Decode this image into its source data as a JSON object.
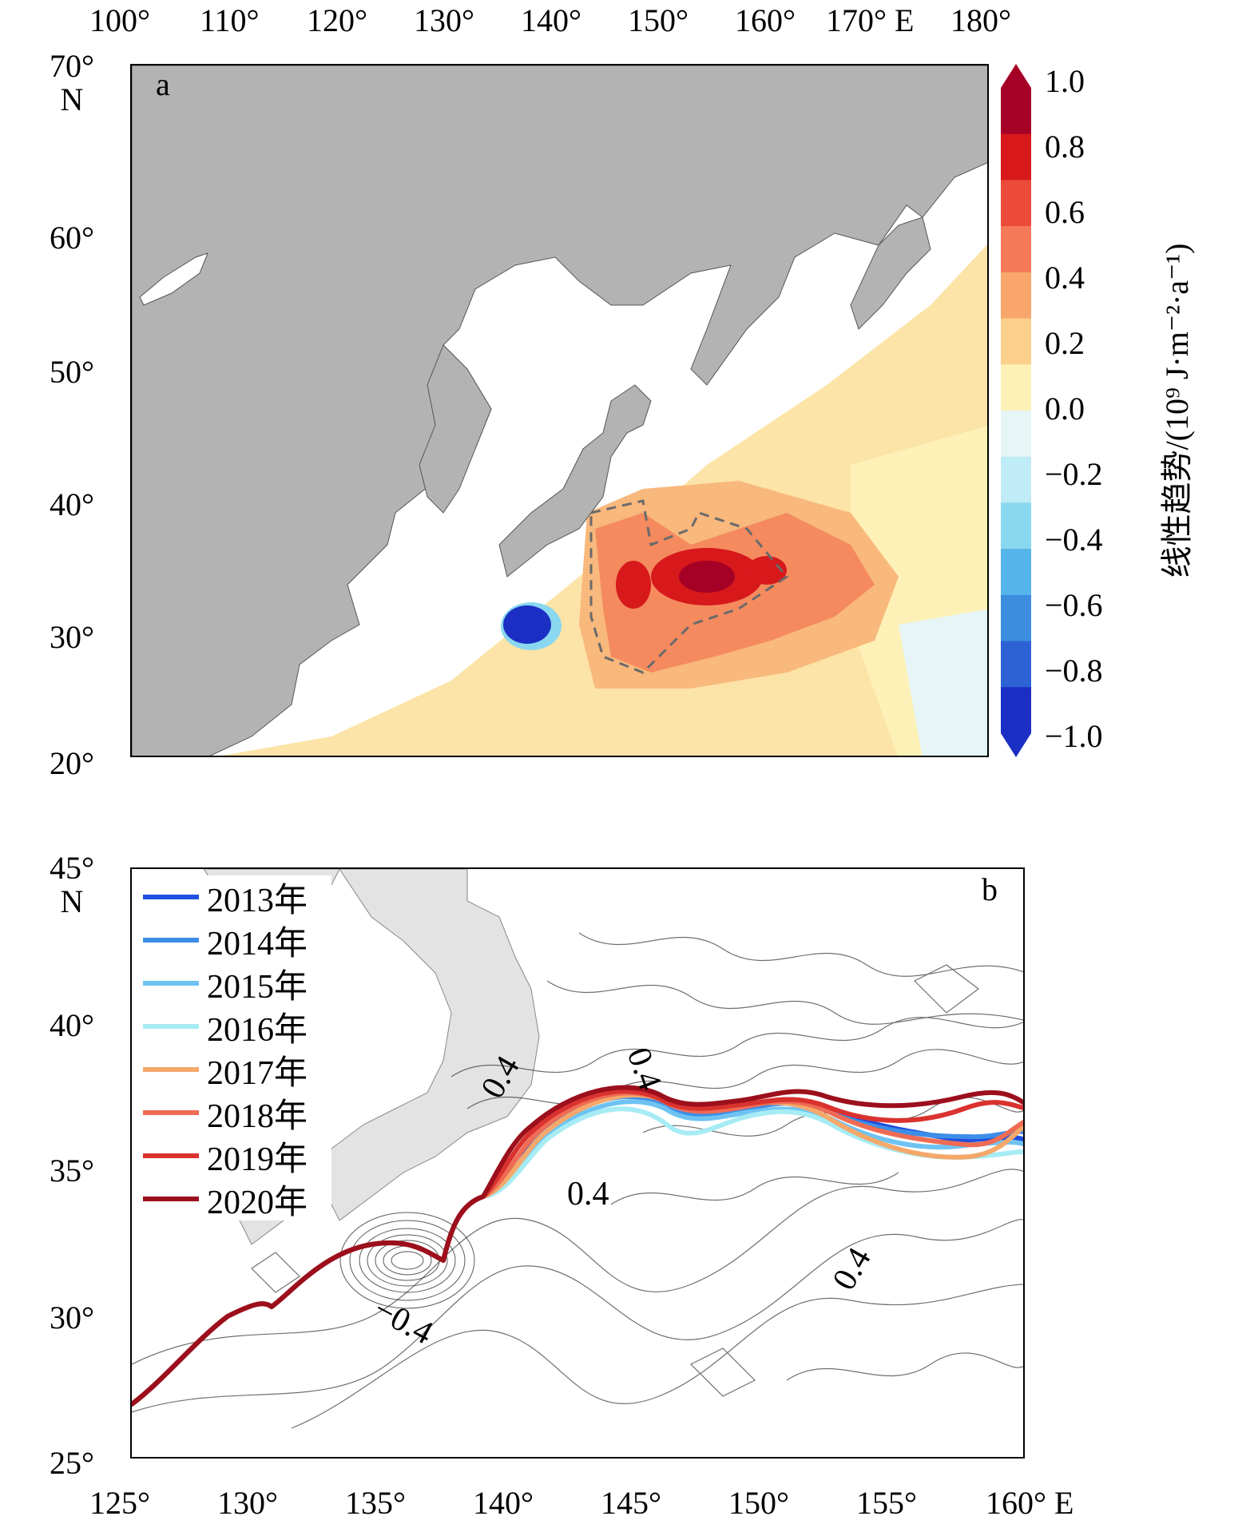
{
  "panel_a": {
    "label": "a",
    "top_ticks": [
      "100°",
      "110°",
      "120°",
      "130°",
      "140°",
      "150°",
      "160°",
      "170° E",
      "180°"
    ],
    "left_ticks": [
      "70°\nN",
      "60°",
      "50°",
      "40°",
      "30°",
      "20°"
    ],
    "colorbar": {
      "ticks": [
        "1.0",
        "0.8",
        "0.6",
        "0.4",
        "0.2",
        "0.0",
        "−0.2",
        "−0.4",
        "−0.6",
        "−0.8",
        "−1.0"
      ],
      "title": "线性趋势/(10⁹ J·m⁻²·a⁻¹)",
      "colors": [
        "#a50026",
        "#d7191c",
        "#ec4a3b",
        "#f57a5a",
        "#f9a66c",
        "#fcd08c",
        "#fef1b7",
        "#e6f6f6",
        "#bfecf6",
        "#8ad7f0",
        "#55b5ea",
        "#3c8de0",
        "#2c62d4",
        "#1b2fc4"
      ]
    },
    "colors": {
      "land": "#b3b3b3",
      "sea_ice_free": "#ffffff"
    }
  },
  "panel_b": {
    "label": "b",
    "bottom_ticks": [
      "125°",
      "130°",
      "135°",
      "140°",
      "145°",
      "150°",
      "155°",
      "160° E"
    ],
    "left_ticks": [
      "45°\nN",
      "40°",
      "35°",
      "30°",
      "25°"
    ],
    "contour_labels": [
      "0.4",
      "0.4",
      "0.4",
      "0.4",
      "−0.4"
    ],
    "legend": [
      {
        "year": "2013年",
        "color": "#1f4fe0"
      },
      {
        "year": "2014年",
        "color": "#3d8ee8"
      },
      {
        "year": "2015年",
        "color": "#6ec3f2"
      },
      {
        "year": "2016年",
        "color": "#a7ecf4"
      },
      {
        "year": "2017年",
        "color": "#f5a86a"
      },
      {
        "year": "2018年",
        "color": "#ef6b54"
      },
      {
        "year": "2019年",
        "color": "#d9322f"
      },
      {
        "year": "2020年",
        "color": "#9c0f1c"
      }
    ],
    "colors": {
      "land": "#e3e3e3"
    }
  }
}
